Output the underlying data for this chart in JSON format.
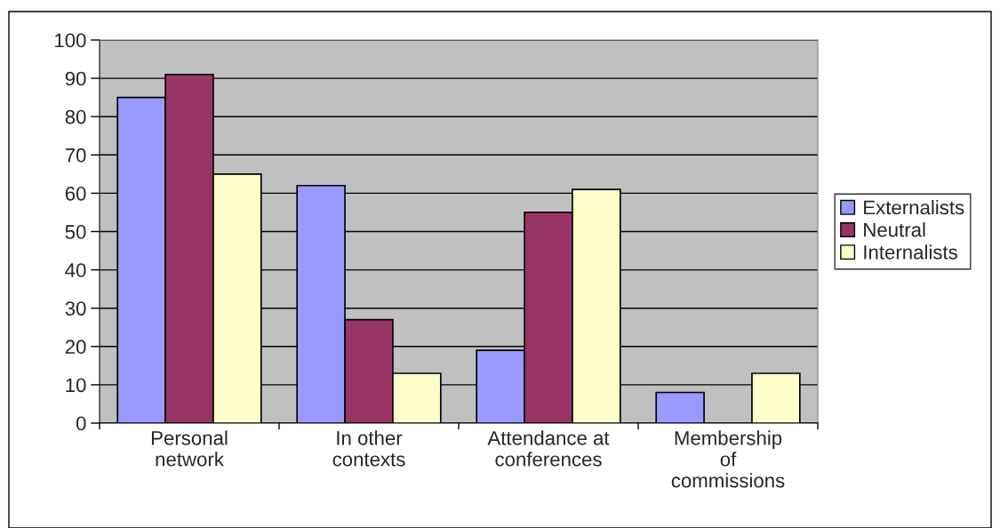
{
  "chart_data": {
    "type": "bar",
    "categories": [
      "Personal\nnetwork",
      "In other\ncontexts",
      "Attendance at\nconferences",
      "Membership\nof\ncommissions"
    ],
    "series": [
      {
        "name": "Externalists",
        "color": "#9999ff",
        "values": [
          85,
          62,
          19,
          8
        ]
      },
      {
        "name": "Neutral",
        "color": "#993366",
        "values": [
          91,
          27,
          55,
          null
        ]
      },
      {
        "name": "Internalists",
        "color": "#ffffcc",
        "values": [
          65,
          13,
          61,
          13
        ]
      }
    ],
    "ylim": [
      0,
      100
    ],
    "yticks": [
      0,
      10,
      20,
      30,
      40,
      50,
      60,
      70,
      80,
      90,
      100
    ],
    "grid": "y",
    "legend": "right"
  }
}
